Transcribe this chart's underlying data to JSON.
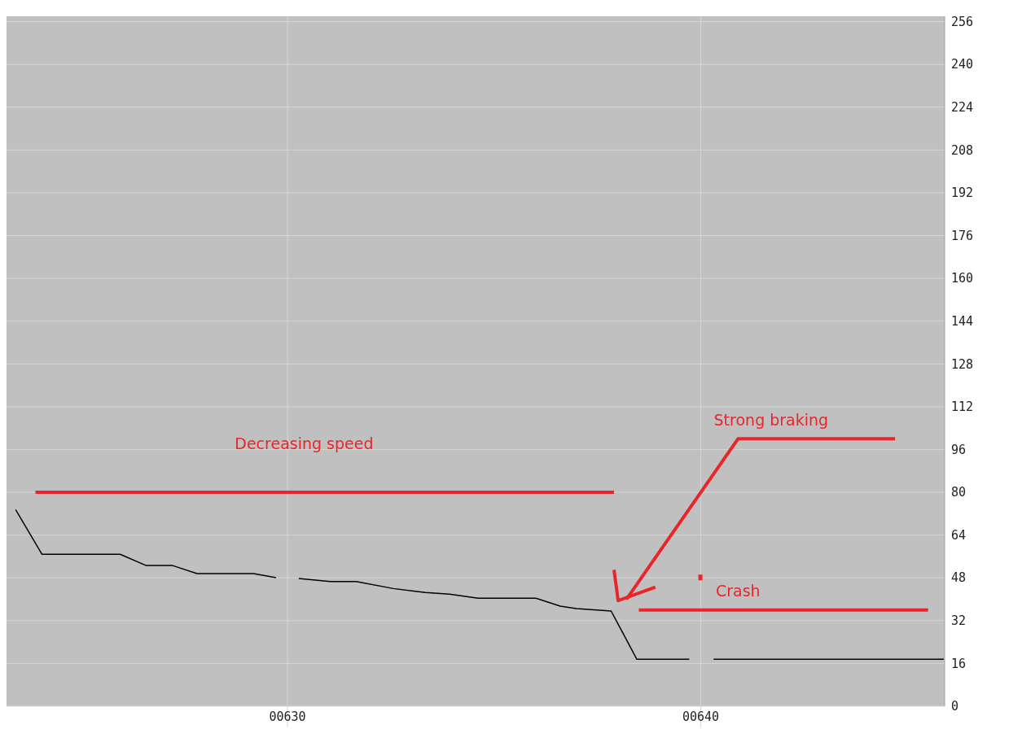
{
  "chart_data": {
    "type": "line",
    "x": [
      623.42,
      624.06,
      625.95,
      626.58,
      627.22,
      627.81,
      629.18,
      629.72,
      630.0,
      630.27,
      631.03,
      631.66,
      632.56,
      633.34,
      633.92,
      634.61,
      636.01,
      636.6,
      636.99,
      637.83,
      638.45,
      639.72,
      640.0,
      640.31,
      645.88
    ],
    "series": [
      {
        "color": "#000000",
        "values": [
          73.5,
          56.8,
          56.8,
          52.6,
          52.6,
          49.6,
          49.6,
          48.1,
          null,
          47.8,
          46.6,
          46.6,
          44,
          42.5,
          41.9,
          40.4,
          40.4,
          37.4,
          36.5,
          35.6,
          17.6,
          17.6,
          null,
          17.6,
          17.6
        ]
      }
    ],
    "xlim": [
      623.2,
      645.9
    ],
    "ylim": [
      0,
      258
    ],
    "xticks": [
      {
        "value": 630,
        "label": "00630"
      },
      {
        "value": 640,
        "label": "00640"
      }
    ],
    "yticks": [
      0,
      16,
      32,
      48,
      64,
      80,
      96,
      112,
      128,
      144,
      160,
      176,
      192,
      208,
      224,
      240,
      256
    ],
    "grid": true,
    "line_style": "solid",
    "annotations": [
      "Decreasing speed",
      "Strong braking",
      "Crash"
    ]
  }
}
